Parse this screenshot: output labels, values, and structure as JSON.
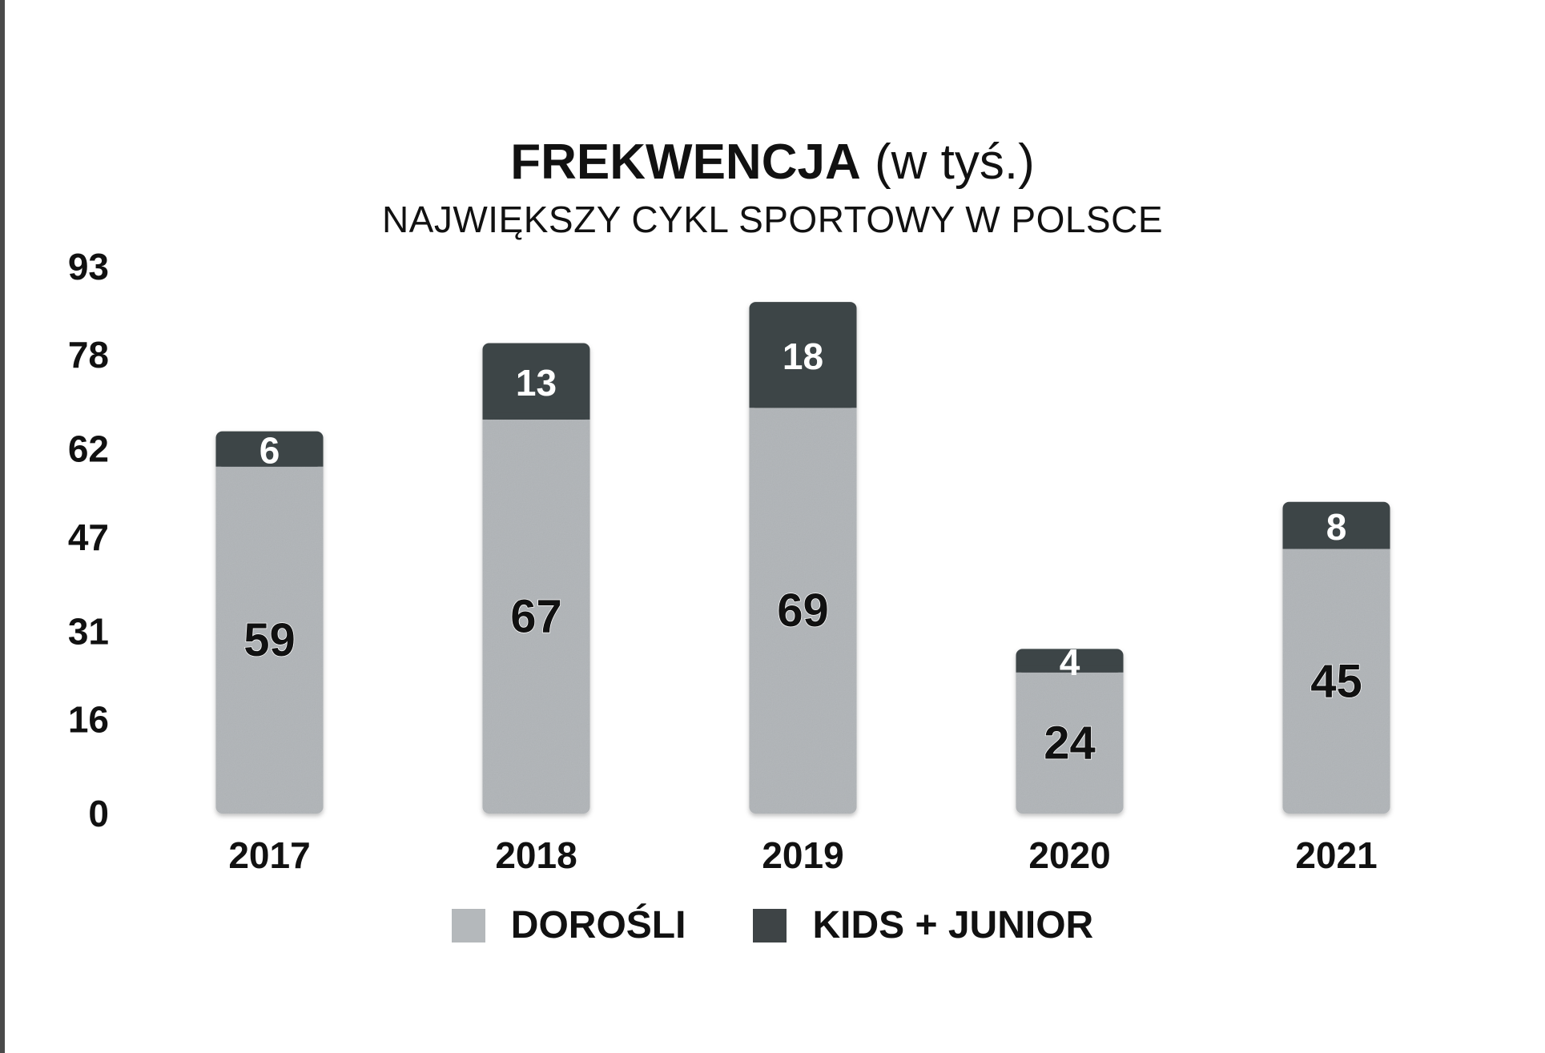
{
  "title": {
    "main": "FREKWENCJA",
    "unit": "(w tyś.)"
  },
  "subtitle": "NAJWIĘKSZY CYKL SPORTOWY W POLSCE",
  "chart_data": {
    "type": "bar",
    "stacked": true,
    "categories": [
      "2017",
      "2018",
      "2019",
      "2020",
      "2021"
    ],
    "series": [
      {
        "name": "DOROŚLI",
        "values": [
          59,
          67,
          69,
          24,
          45
        ],
        "color": "#b4b8bb"
      },
      {
        "name": "KIDS + JUNIOR",
        "values": [
          6,
          13,
          18,
          4,
          8
        ],
        "color": "#3e4446"
      }
    ],
    "yticks": [
      "0",
      "16",
      "31",
      "47",
      "62",
      "78",
      "93"
    ],
    "ylim": [
      0,
      93
    ],
    "grid": false,
    "legend_position": "bottom"
  },
  "legend": {
    "items": [
      {
        "label": "DOROŚLI",
        "color": "#b4b8bb"
      },
      {
        "label": "KIDS + JUNIOR",
        "color": "#3e4446"
      }
    ]
  }
}
